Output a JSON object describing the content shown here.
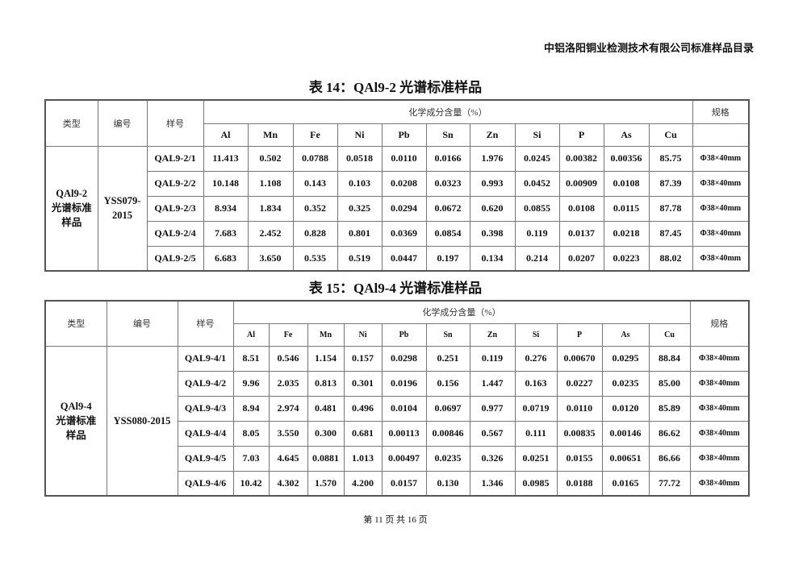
{
  "running_head": "中铝洛阳铜业检测技术有限公司标准样品目录",
  "tables": [
    {
      "title": "表 14：QAl9-2 光谱标准样品",
      "headers": {
        "type": "类型",
        "code": "编号",
        "sample": "样号",
        "composition": "化学成分含量（%）",
        "spec": "规格"
      },
      "elements": [
        "Al",
        "Mn",
        "Fe",
        "Ni",
        "Pb",
        "Sn",
        "Zn",
        "Si",
        "P",
        "As",
        "Cu"
      ],
      "type_value": [
        "QAl9-2",
        "光谱标准",
        "样品"
      ],
      "code_value": [
        "YSS079-",
        "2015"
      ],
      "rows": [
        {
          "sample": "QAL9-2/1",
          "values": [
            "11.413",
            "0.502",
            "0.0788",
            "0.0518",
            "0.0110",
            "0.0166",
            "1.976",
            "0.0245",
            "0.00382",
            "0.00356",
            "85.75"
          ],
          "spec": "Φ38×40mm"
        },
        {
          "sample": "QAL9-2/2",
          "values": [
            "10.148",
            "1.108",
            "0.143",
            "0.103",
            "0.0208",
            "0.0323",
            "0.993",
            "0.0452",
            "0.00909",
            "0.0108",
            "87.39"
          ],
          "spec": "Φ38×40mm"
        },
        {
          "sample": "QAL9-2/3",
          "values": [
            "8.934",
            "1.834",
            "0.352",
            "0.325",
            "0.0294",
            "0.0672",
            "0.620",
            "0.0855",
            "0.0108",
            "0.0115",
            "87.78"
          ],
          "spec": "Φ38×40mm"
        },
        {
          "sample": "QAL9-2/4",
          "values": [
            "7.683",
            "2.452",
            "0.828",
            "0.801",
            "0.0369",
            "0.0854",
            "0.398",
            "0.119",
            "0.0137",
            "0.0218",
            "87.45"
          ],
          "spec": "Φ38×40mm"
        },
        {
          "sample": "QAL9-2/5",
          "values": [
            "6.683",
            "3.650",
            "0.535",
            "0.519",
            "0.0447",
            "0.197",
            "0.134",
            "0.214",
            "0.0207",
            "0.0223",
            "88.02"
          ],
          "spec": "Φ38×40mm"
        }
      ]
    },
    {
      "title": "表 15：QAl9-4 光谱标准样品",
      "headers": {
        "type": "类型",
        "code": "编号",
        "sample": "样号",
        "composition": "化学成分含量（%）",
        "spec": "规格"
      },
      "elements": [
        "Al",
        "Fe",
        "Mn",
        "Ni",
        "Pb",
        "Sn",
        "Zn",
        "Si",
        "P",
        "As",
        "Cu"
      ],
      "type_value": [
        "QAl9-4",
        "光谱标准",
        "样品"
      ],
      "code_value": [
        "YSS080-2015"
      ],
      "rows": [
        {
          "sample": "QAL9-4/1",
          "values": [
            "8.51",
            "0.546",
            "1.154",
            "0.157",
            "0.0298",
            "0.251",
            "0.119",
            "0.276",
            "0.00670",
            "0.0295",
            "88.84"
          ],
          "spec": "Φ38×40mm"
        },
        {
          "sample": "QAL9-4/2",
          "values": [
            "9.96",
            "2.035",
            "0.813",
            "0.301",
            "0.0196",
            "0.156",
            "1.447",
            "0.163",
            "0.0227",
            "0.0235",
            "85.00"
          ],
          "spec": "Φ38×40mm"
        },
        {
          "sample": "QAL9-4/3",
          "values": [
            "8.94",
            "2.974",
            "0.481",
            "0.496",
            "0.0104",
            "0.0697",
            "0.977",
            "0.0719",
            "0.0110",
            "0.0120",
            "85.89"
          ],
          "spec": "Φ38×40mm"
        },
        {
          "sample": "QAL9-4/4",
          "values": [
            "8.05",
            "3.550",
            "0.300",
            "0.681",
            "0.00113",
            "0.00846",
            "0.567",
            "0.111",
            "0.00835",
            "0.00146",
            "86.62"
          ],
          "spec": "Φ38×40mm"
        },
        {
          "sample": "QAL9-4/5",
          "values": [
            "7.03",
            "4.645",
            "0.0881",
            "1.013",
            "0.00497",
            "0.0235",
            "0.326",
            "0.0251",
            "0.0155",
            "0.00651",
            "86.66"
          ],
          "spec": "Φ38×40mm"
        },
        {
          "sample": "QAL9-4/6",
          "values": [
            "10.42",
            "4.302",
            "1.570",
            "4.200",
            "0.0157",
            "0.130",
            "1.346",
            "0.0985",
            "0.0188",
            "0.0165",
            "77.72"
          ],
          "spec": "Φ38×40mm"
        }
      ]
    }
  ],
  "footer": "第 11 页 共 16 页"
}
